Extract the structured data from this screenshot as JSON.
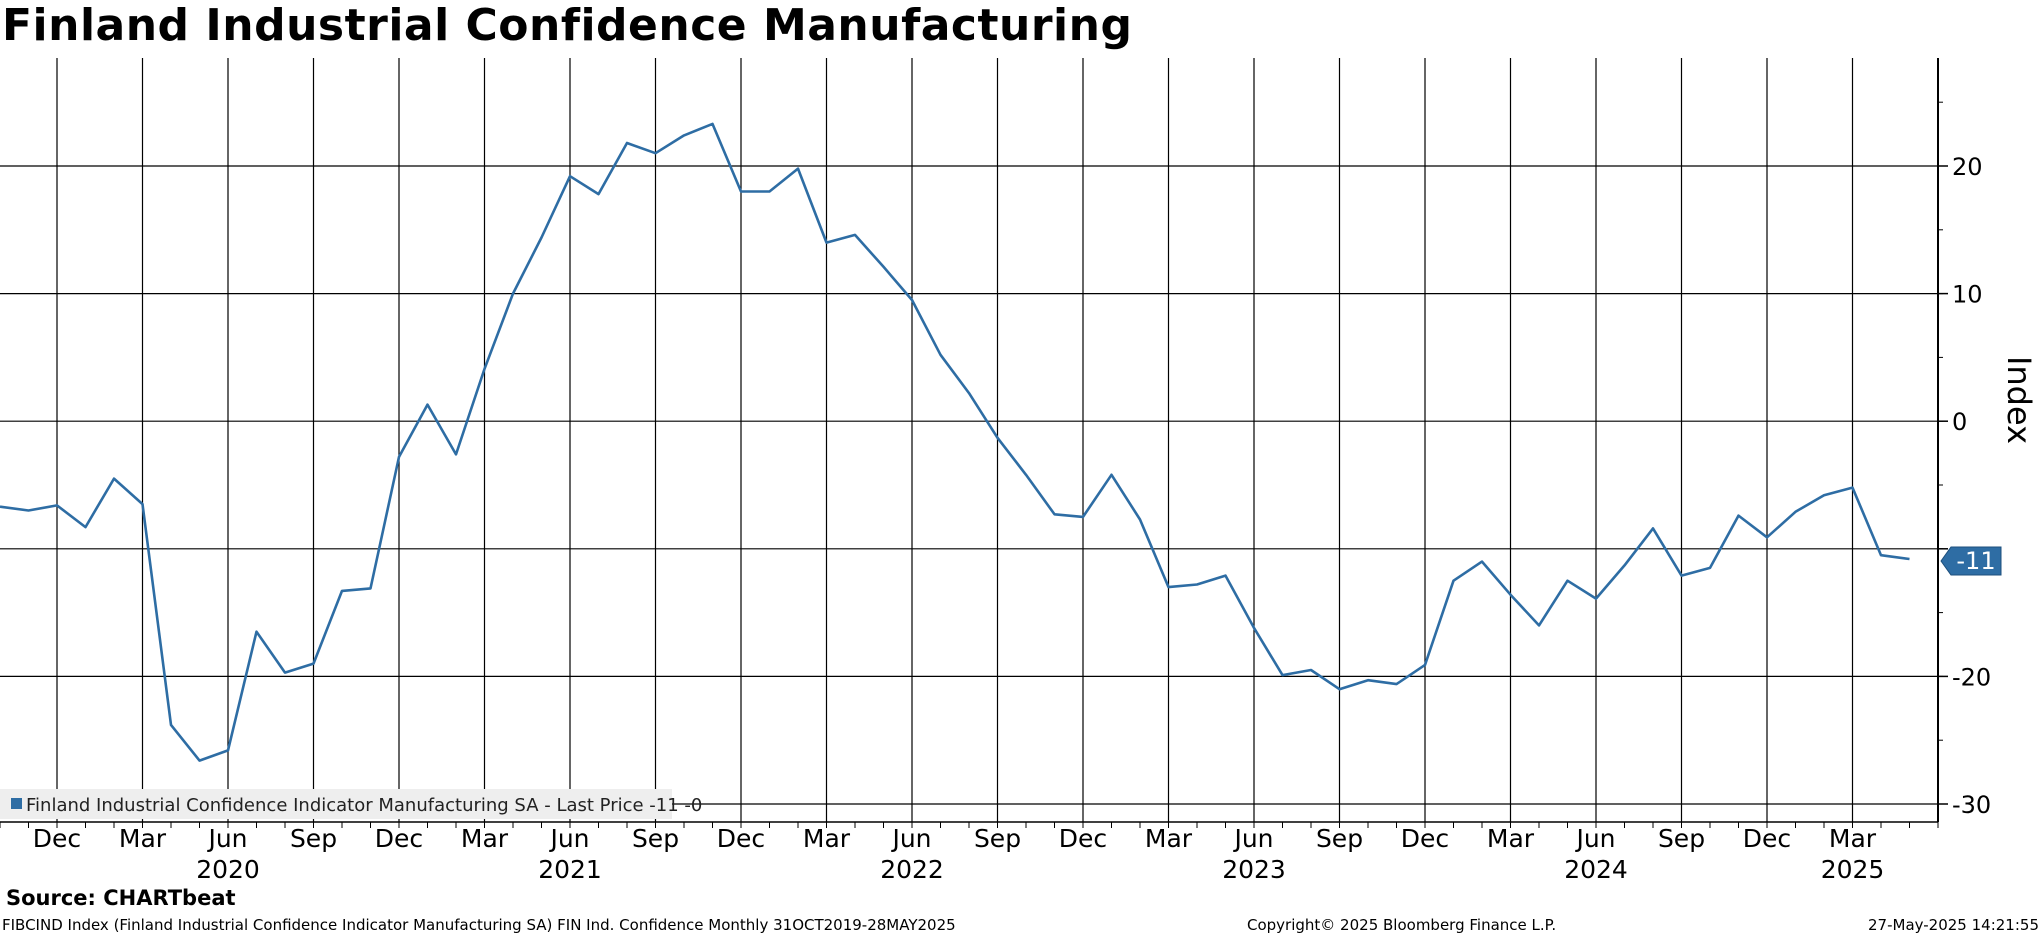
{
  "header": {
    "title": "Finland Industrial Confidence Manufacturing"
  },
  "footer": {
    "source": "Source: CHARTbeat",
    "ticker_line": "FIBCIND Index (Finland Industrial Confidence Indicator Manufacturing SA) FIN Ind. Confidence  Monthly 31OCT2019-28MAY2025",
    "copyright": "Copyright© 2025 Bloomberg Finance L.P.",
    "timestamp": "27-May-2025 14:21:55"
  },
  "colors": {
    "line": "#2e6da4",
    "grid": "#000000",
    "background": "#ffffff",
    "legend_bg": "#eeeeee"
  },
  "chart_data": {
    "type": "line",
    "title": "Finland Industrial Confidence Manufacturing",
    "ylabel": "Index",
    "xlabel": "",
    "ylim": [
      -31,
      28
    ],
    "yticks": [
      20,
      10,
      0,
      -10,
      -20,
      -30
    ],
    "ytick_labels": [
      "20",
      "10",
      "0",
      "",
      "-20",
      "-30"
    ],
    "x_start": "2019-10",
    "x_ticks": [
      {
        "label": "Dec",
        "index": 2
      },
      {
        "label": "Mar",
        "index": 5
      },
      {
        "label": "Jun",
        "index": 8
      },
      {
        "label": "Sep",
        "index": 11
      },
      {
        "label": "Dec",
        "index": 14
      },
      {
        "label": "Mar",
        "index": 17
      },
      {
        "label": "Jun",
        "index": 20
      },
      {
        "label": "Sep",
        "index": 23
      },
      {
        "label": "Dec",
        "index": 26
      },
      {
        "label": "Mar",
        "index": 29
      },
      {
        "label": "Jun",
        "index": 32
      },
      {
        "label": "Sep",
        "index": 35
      },
      {
        "label": "Dec",
        "index": 38
      },
      {
        "label": "Mar",
        "index": 41
      },
      {
        "label": "Jun",
        "index": 44
      },
      {
        "label": "Sep",
        "index": 47
      },
      {
        "label": "Dec",
        "index": 50
      },
      {
        "label": "Mar",
        "index": 53
      },
      {
        "label": "Jun",
        "index": 56
      },
      {
        "label": "Sep",
        "index": 59
      },
      {
        "label": "Dec",
        "index": 62
      },
      {
        "label": "Mar",
        "index": 65
      }
    ],
    "year_labels": [
      {
        "label": "2020",
        "index": 8
      },
      {
        "label": "2021",
        "index": 20
      },
      {
        "label": "2022",
        "index": 32
      },
      {
        "label": "2023",
        "index": 44
      },
      {
        "label": "2024",
        "index": 56
      },
      {
        "label": "2025",
        "index": 65
      }
    ],
    "series": [
      {
        "name": "Finland Industrial Confidence Indicator Manufacturing SA",
        "legend": "Finland Industrial Confidence Indicator Manufacturing SA - Last Price -11 -0",
        "last_value_label": "-11",
        "values": [
          -6.7,
          -7.0,
          -6.6,
          -8.3,
          -4.5,
          -6.5,
          -23.8,
          -26.6,
          -25.8,
          -16.5,
          -19.7,
          -19.0,
          -13.3,
          -13.1,
          -2.8,
          1.3,
          -2.6,
          4.1,
          10.0,
          14.4,
          19.2,
          17.8,
          21.8,
          21.0,
          22.4,
          23.3,
          18.0,
          18.0,
          19.8,
          14.0,
          14.6,
          12.1,
          9.5,
          5.2,
          2.2,
          -1.3,
          -4.2,
          -7.3,
          -7.5,
          -4.2,
          -7.7,
          -13.0,
          -12.8,
          -12.1,
          -16.2,
          -19.9,
          -19.5,
          -21.0,
          -20.3,
          -20.6,
          -19.1,
          -12.5,
          -11.0,
          -13.6,
          -16.0,
          -12.5,
          -13.9,
          -11.3,
          -8.4,
          -12.1,
          -11.5,
          -7.4,
          -9.1,
          -7.1,
          -5.8,
          -5.2,
          -10.5,
          -10.8
        ]
      }
    ]
  }
}
